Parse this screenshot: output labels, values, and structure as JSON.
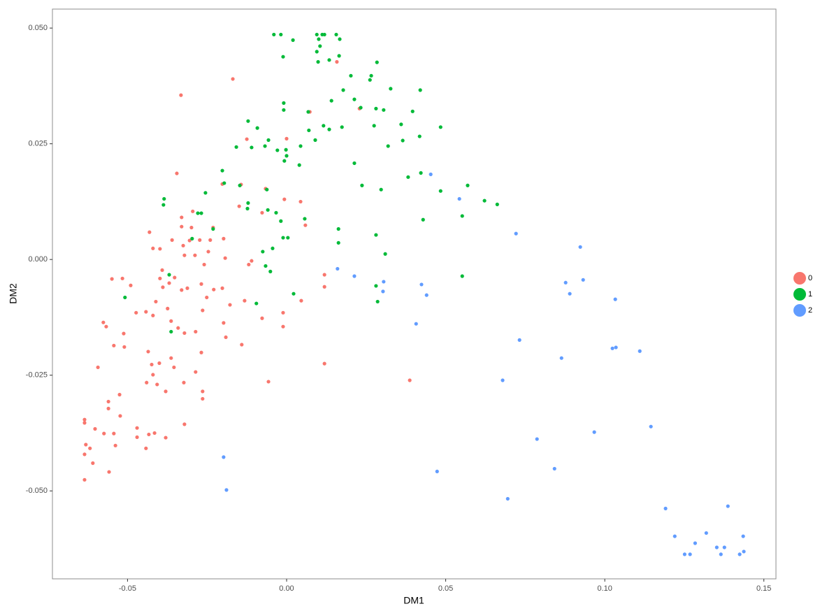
{
  "chart_data": {
    "type": "scatter",
    "x_label": "DM1",
    "y_label": "DM2",
    "xlim": [
      -0.0736,
      0.1538
    ],
    "ylim": [
      -0.069,
      0.0541
    ],
    "xticks": [
      -0.05,
      {
        "value": 0,
        "label": "0.00"
      },
      0.05,
      {
        "value": 0.1,
        "label": "0.10"
      },
      0.15
    ],
    "yticks": [
      {
        "value": -0.05,
        "label": "-0.050"
      },
      -0.025,
      {
        "value": 0,
        "label": "0.000"
      },
      0.025,
      {
        "value": 0.05,
        "label": "0.050"
      }
    ],
    "grid": false,
    "legend": "right",
    "series": [
      {
        "name": "0",
        "color": "#F8766D",
        "x": [
          -0.0169,
          -0.0332,
          -0.0345,
          0.0158,
          0.0073,
          0.0229,
          0.0,
          -0.0125,
          -0.0202,
          -0.0143,
          -0.0149,
          -0.0066,
          -0.0007,
          0.0044,
          -0.0077,
          -0.0295,
          -0.033,
          -0.033,
          -0.0299,
          -0.0431,
          -0.042,
          -0.0398,
          -0.036,
          -0.0325,
          -0.0305,
          -0.0273,
          -0.024,
          -0.0231,
          -0.0198,
          -0.0193,
          -0.0246,
          -0.0259,
          -0.0288,
          -0.0321,
          -0.0391,
          -0.0398,
          -0.0389,
          -0.0369,
          -0.0352,
          -0.033,
          -0.0312,
          -0.0268,
          -0.0251,
          -0.0229,
          -0.0202,
          -0.0178,
          -0.0191,
          -0.0141,
          -0.0198,
          -0.0264,
          -0.0286,
          -0.0321,
          -0.0341,
          -0.0363,
          -0.0374,
          -0.0411,
          -0.042,
          -0.0442,
          -0.0473,
          -0.049,
          -0.0516,
          -0.0549,
          -0.0576,
          -0.0567,
          -0.0543,
          -0.0512,
          -0.051,
          -0.0435,
          -0.0424,
          -0.04,
          -0.044,
          -0.042,
          -0.0407,
          -0.038,
          -0.0363,
          -0.0354,
          -0.0323,
          -0.0286,
          -0.0268,
          -0.0264,
          -0.0264,
          -0.0321,
          -0.038,
          -0.0415,
          -0.047,
          -0.0442,
          -0.0433,
          -0.047,
          -0.0525,
          -0.0523,
          -0.0543,
          -0.0538,
          -0.056,
          -0.056,
          -0.0574,
          -0.0602,
          -0.0635,
          -0.0635,
          -0.0631,
          -0.0618,
          -0.0609,
          -0.0635,
          -0.0635,
          -0.0558,
          -0.0593,
          -0.0132,
          -0.0119,
          -0.011,
          -0.0077,
          -0.0011,
          0.0046,
          -0.0011,
          -0.0057,
          0.0387,
          0.0119,
          0.0119,
          0.0119,
          0.0059
        ],
        "values": [
          0.039,
          0.0355,
          0.0186,
          0.0427,
          0.0319,
          0.0326,
          0.0261,
          0.026,
          0.0163,
          0.0162,
          0.0115,
          0.0153,
          0.013,
          0.0125,
          0.0101,
          0.0104,
          0.0091,
          0.0071,
          0.0069,
          0.0059,
          0.0024,
          0.0023,
          0.0042,
          0.003,
          0.0041,
          0.0042,
          0.0042,
          0.0069,
          0.0045,
          0.0003,
          0.0017,
          -0.0011,
          0.0009,
          0.0009,
          -0.0023,
          -0.0041,
          -0.006,
          -0.0051,
          -0.0039,
          -0.0066,
          -0.0062,
          -0.0053,
          -0.0082,
          -0.0065,
          -0.0062,
          -0.0098,
          -0.0168,
          -0.0184,
          -0.0137,
          -0.011,
          -0.0156,
          -0.0159,
          -0.0148,
          -0.0133,
          -0.0106,
          -0.0091,
          -0.0121,
          -0.0113,
          -0.0115,
          -0.0056,
          -0.0041,
          -0.0042,
          -0.0136,
          -0.0145,
          -0.0186,
          -0.016,
          -0.0189,
          -0.0199,
          -0.0227,
          -0.0224,
          -0.0266,
          -0.0249,
          -0.027,
          -0.0285,
          -0.0213,
          -0.0233,
          -0.0266,
          -0.0243,
          -0.0201,
          -0.0285,
          -0.0301,
          -0.0356,
          -0.0385,
          -0.0375,
          -0.0384,
          -0.0408,
          -0.0378,
          -0.0364,
          -0.0292,
          -0.0338,
          -0.0376,
          -0.0402,
          -0.0307,
          -0.0322,
          -0.0376,
          -0.0366,
          -0.0346,
          -0.0353,
          -0.04,
          -0.0408,
          -0.044,
          -0.0421,
          -0.0476,
          -0.0459,
          -0.0233,
          -0.0089,
          -0.0011,
          -0.0003,
          -0.0127,
          -0.0115,
          -0.0089,
          -0.0145,
          -0.0264,
          -0.0261,
          -0.0225,
          -0.0033,
          -0.0059,
          0.0074
        ]
      },
      {
        "name": "1",
        "color": "#00BA38",
        "x": [
          -0.004,
          -0.0018,
          0.002,
          -0.0011,
          0.0095,
          0.0112,
          0.0119,
          0.0101,
          0.0156,
          0.0167,
          0.0105,
          0.0134,
          0.0095,
          0.0099,
          0.0165,
          0.0202,
          0.0284,
          0.0262,
          0.0178,
          0.0266,
          0.0327,
          0.042,
          0.0396,
          0.036,
          0.0484,
          0.0418,
          0.0281,
          0.0213,
          0.0233,
          0.0305,
          0.0275,
          0.0319,
          0.0365,
          -0.0009,
          -0.0009,
          0.0068,
          0.0141,
          0.007,
          0.0116,
          0.0174,
          0.0213,
          0.0237,
          0.0297,
          0.0382,
          0.0422,
          0.0484,
          0.0569,
          0.0622,
          0.0662,
          0.0429,
          0.0552,
          0.0281,
          0.031,
          0.0552,
          0.0281,
          0.0286,
          0.0163,
          0.0163,
          -0.0121,
          -0.0092,
          -0.011,
          -0.0158,
          -0.0068,
          -0.0057,
          -0.0029,
          -0.0002,
          0.0,
          -0.0007,
          0.0044,
          0.009,
          0.0134,
          0.004,
          -0.0202,
          -0.0196,
          -0.0385,
          -0.0387,
          -0.0255,
          -0.0279,
          -0.0268,
          -0.0147,
          -0.0121,
          -0.0123,
          -0.0062,
          -0.0059,
          -0.0033,
          -0.0018,
          0.0057,
          -0.0011,
          0.0004,
          -0.0044,
          -0.0075,
          -0.0066,
          0.0022,
          -0.0095,
          -0.0051,
          -0.0297,
          -0.0231,
          -0.0369,
          -0.0363,
          -0.0508
        ],
        "values": [
          0.0486,
          0.0486,
          0.0474,
          0.0438,
          0.0486,
          0.0486,
          0.0486,
          0.0476,
          0.0486,
          0.0476,
          0.0461,
          0.0431,
          0.0449,
          0.0427,
          0.044,
          0.0397,
          0.0426,
          0.0388,
          0.0366,
          0.0397,
          0.0369,
          0.0366,
          0.032,
          0.0292,
          0.0286,
          0.0266,
          0.0326,
          0.0346,
          0.0328,
          0.0323,
          0.0289,
          0.0245,
          0.0257,
          0.0338,
          0.0323,
          0.0319,
          0.0343,
          0.0279,
          0.0289,
          0.0286,
          0.0208,
          0.016,
          0.0151,
          0.0178,
          0.0187,
          0.0148,
          0.016,
          0.0127,
          0.0119,
          0.0086,
          0.0094,
          0.0053,
          0.0012,
          -0.0036,
          -0.0057,
          -0.0091,
          0.0066,
          0.0036,
          0.0299,
          0.0284,
          0.0242,
          0.0243,
          0.0245,
          0.0258,
          0.0236,
          0.0237,
          0.0224,
          0.0213,
          0.0245,
          0.0258,
          0.0281,
          0.0204,
          0.0192,
          0.0165,
          0.0131,
          0.0118,
          0.0144,
          0.01,
          0.01,
          0.016,
          0.0122,
          0.011,
          0.0151,
          0.0107,
          0.0101,
          0.0083,
          0.0088,
          0.0047,
          0.0047,
          0.0024,
          0.0017,
          -0.0014,
          -0.0074,
          -0.0095,
          -0.0026,
          0.0045,
          0.0066,
          -0.0033,
          -0.0156,
          -0.0082
        ]
      },
      {
        "name": "2",
        "color": "#619CFF",
        "x": [
          -0.0198,
          -0.0189,
          0.016,
          0.0213,
          0.0303,
          0.0305,
          0.0407,
          0.0424,
          0.044,
          0.0453,
          0.0473,
          0.0543,
          0.0679,
          0.0695,
          0.0721,
          0.0732,
          0.0787,
          0.0842,
          0.0864,
          0.0877,
          0.089,
          0.0923,
          0.0932,
          0.0967,
          0.1024,
          0.1033,
          0.1035,
          0.111,
          0.1145,
          0.1191,
          0.122,
          0.1251,
          0.1268,
          0.1284,
          0.1319,
          0.1352,
          0.1365,
          0.1376,
          0.1387,
          0.1424,
          0.1435,
          0.1437
        ],
        "values": [
          -0.0427,
          -0.0498,
          -0.002,
          -0.0036,
          -0.0069,
          -0.0048,
          -0.0139,
          -0.0054,
          -0.0077,
          0.0184,
          -0.0458,
          0.0131,
          -0.0261,
          -0.0517,
          0.0056,
          -0.0174,
          -0.0388,
          -0.0452,
          -0.0213,
          -0.005,
          -0.0074,
          0.0027,
          -0.0044,
          -0.0373,
          -0.0192,
          -0.0086,
          -0.019,
          -0.0198,
          -0.0361,
          -0.0538,
          -0.0598,
          -0.0637,
          -0.0637,
          -0.0613,
          -0.0591,
          -0.0622,
          -0.0637,
          -0.0622,
          -0.0533,
          -0.0637,
          -0.0598,
          -0.0631
        ]
      }
    ]
  }
}
